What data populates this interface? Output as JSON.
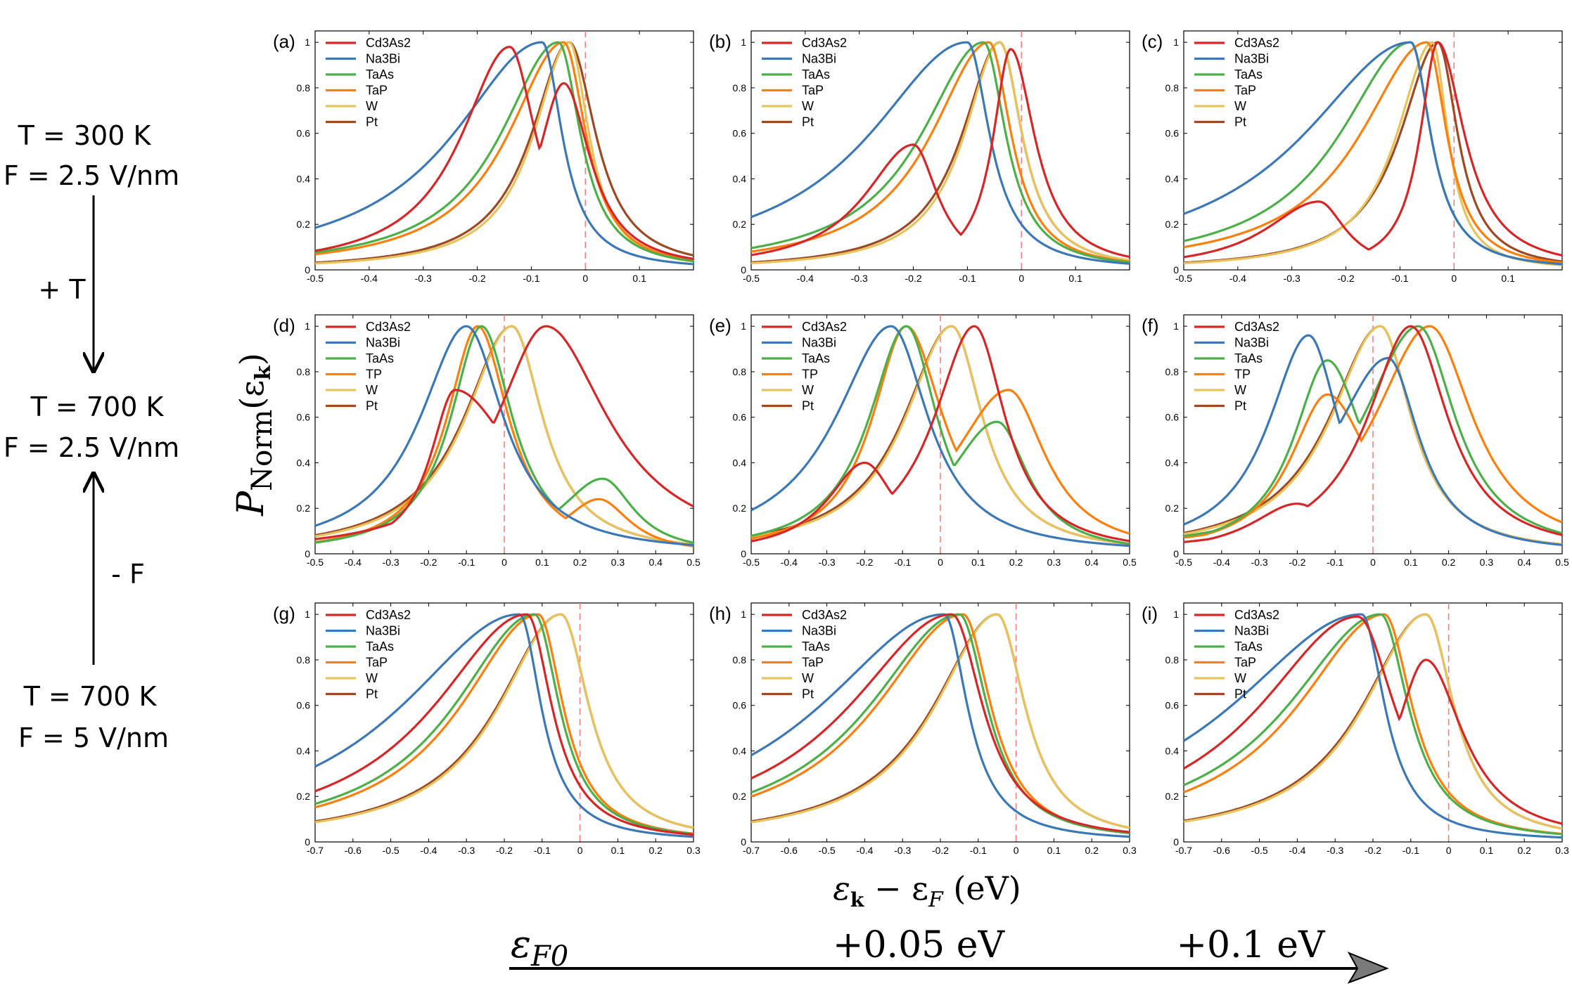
{
  "side": {
    "state1_line1": "T = 300 K",
    "state1_line2": "F = 2.5 V/nm",
    "arrow1_label": "+ T",
    "state2_line1": "T = 700 K",
    "state2_line2": "F = 2.5 V/nm",
    "arrow2_label": "- F",
    "state3_line1": "T = 700 K",
    "state3_line2": "F = 5 V/nm"
  },
  "ylabel": "P",
  "ylabel_sub": "Norm",
  "ylabel_arg": "(ε",
  "ylabel_arg_sub": "k",
  "ylabel_close": ")",
  "xlabel": "ε",
  "xlabel_sub1": "k",
  "xlabel_mid": " − ε",
  "xlabel_sub2": "F",
  "xlabel_unit": " (eV)",
  "bottom": {
    "label1": "ε",
    "label1_sub": "F0",
    "label2": "+0.05 eV",
    "label3": "+0.1 eV"
  },
  "colors": {
    "Cd3As2": "#d62728",
    "Na3Bi": "#3b78b5",
    "TaAs": "#4daf4a",
    "TaP": "#ff7f0e",
    "W": "#e6c35c",
    "Pt": "#9c4a24",
    "fermi_line": "#f08080"
  },
  "chart_data": [
    {
      "panel": "(a)",
      "type": "line",
      "xlim": [
        -0.5,
        0.2
      ],
      "ylim": [
        0,
        1.05
      ],
      "xticks": [
        "-0.5",
        "-0.4",
        "-0.3",
        "-0.2",
        "-0.1",
        "0",
        "0.1"
      ],
      "yticks": [
        "0",
        "0.2",
        "0.4",
        "0.6",
        "0.8",
        "1"
      ],
      "legend": [
        "Cd3As2",
        "Na3Bi",
        "TaAs",
        "TaP",
        "W",
        "Pt"
      ],
      "series": [
        {
          "name": "Cd3As2",
          "peaks": [
            {
              "c": -0.14,
              "w": 0.11,
              "a": 0.98
            },
            {
              "c": -0.04,
              "w": 0.06,
              "a": 0.82
            }
          ],
          "tail": 0.06
        },
        {
          "name": "Na3Bi",
          "peaks": [
            {
              "c": -0.08,
              "w": 0.2,
              "a": 1
            }
          ],
          "tail": 0.045
        },
        {
          "name": "TaAs",
          "peaks": [
            {
              "c": -0.05,
              "w": 0.13,
              "a": 1
            }
          ],
          "tail": 0.05
        },
        {
          "name": "TaP",
          "peaks": [
            {
              "c": -0.04,
              "w": 0.125,
              "a": 1
            }
          ],
          "tail": 0.05
        },
        {
          "name": "W",
          "peaks": [
            {
              "c": -0.03,
              "w": 0.08,
              "a": 1
            }
          ],
          "tail": 0.045
        },
        {
          "name": "Pt",
          "peaks": [
            {
              "c": -0.03,
              "w": 0.085,
              "a": 1
            }
          ],
          "tail": 0.06
        }
      ]
    },
    {
      "panel": "(b)",
      "type": "line",
      "xlim": [
        -0.5,
        0.2
      ],
      "ylim": [
        0,
        1.05
      ],
      "xticks": [
        "-0.5",
        "-0.4",
        "-0.3",
        "-0.2",
        "-0.1",
        "0",
        "0.1"
      ],
      "yticks": [
        "0",
        "0.2",
        "0.4",
        "0.6",
        "0.8",
        "1"
      ],
      "legend": [
        "Cd3As2",
        "Na3Bi",
        "TaAs",
        "TaP",
        "W",
        "Pt"
      ],
      "series": [
        {
          "name": "Cd3As2",
          "peaks": [
            {
              "c": -0.2,
              "w": 0.11,
              "a": 0.55
            },
            {
              "c": -0.02,
              "w": 0.04,
              "a": 0.97
            }
          ],
          "tail": 0.055
        },
        {
          "name": "Na3Bi",
          "peaks": [
            {
              "c": -0.1,
              "w": 0.22,
              "a": 1
            }
          ],
          "tail": 0.05
        },
        {
          "name": "TaAs",
          "peaks": [
            {
              "c": -0.07,
              "w": 0.14,
              "a": 1
            }
          ],
          "tail": 0.05
        },
        {
          "name": "TaP",
          "peaks": [
            {
              "c": -0.06,
              "w": 0.13,
              "a": 1
            }
          ],
          "tail": 0.05
        },
        {
          "name": "W",
          "peaks": [
            {
              "c": -0.04,
              "w": 0.08,
              "a": 1
            }
          ],
          "tail": 0.05
        },
        {
          "name": "Pt",
          "peaks": [
            {
              "c": -0.04,
              "w": 0.085,
              "a": 1
            }
          ],
          "tail": 0.05
        }
      ]
    },
    {
      "panel": "(c)",
      "type": "line",
      "xlim": [
        -0.5,
        0.2
      ],
      "ylim": [
        0,
        1.05
      ],
      "xticks": [
        "-0.5",
        "-0.4",
        "-0.3",
        "-0.2",
        "-0.1",
        "0",
        "0.1"
      ],
      "yticks": [
        "0",
        "0.2",
        "0.4",
        "0.6",
        "0.8",
        "1"
      ],
      "legend": [
        "Cd3As2",
        "Na3Bi",
        "TaAs",
        "TaP",
        "W",
        "Pt"
      ],
      "series": [
        {
          "name": "Cd3As2",
          "peaks": [
            {
              "c": -0.25,
              "w": 0.12,
              "a": 0.3
            },
            {
              "c": -0.03,
              "w": 0.04,
              "a": 1
            }
          ],
          "tail": 0.06
        },
        {
          "name": "Na3Bi",
          "peaks": [
            {
              "c": -0.08,
              "w": 0.24,
              "a": 1
            }
          ],
          "tail": 0.045
        },
        {
          "name": "TaAs",
          "peaks": [
            {
              "c": -0.08,
              "w": 0.16,
              "a": 1
            }
          ],
          "tail": 0.045
        },
        {
          "name": "TaP",
          "peaks": [
            {
              "c": -0.05,
              "w": 0.15,
              "a": 1
            }
          ],
          "tail": 0.045
        },
        {
          "name": "W",
          "peaks": [
            {
              "c": -0.04,
              "w": 0.08,
              "a": 1
            }
          ],
          "tail": 0.035
        },
        {
          "name": "Pt",
          "peaks": [
            {
              "c": -0.03,
              "w": 0.085,
              "a": 1
            }
          ],
          "tail": 0.045
        }
      ]
    },
    {
      "panel": "(d)",
      "type": "line",
      "xlim": [
        -0.5,
        0.5
      ],
      "ylim": [
        0,
        1.05
      ],
      "xticks": [
        "-0.5",
        "-0.4",
        "-0.3",
        "-0.2",
        "-0.1",
        "0",
        "0.1",
        "0.2",
        "0.3",
        "0.4",
        "0.5"
      ],
      "yticks": [
        "0",
        "0.2",
        "0.4",
        "0.6",
        "0.8",
        "1"
      ],
      "legend": [
        "Cd3As2",
        "Na3Bi",
        "TaAs",
        "TP",
        "W",
        "Pt"
      ],
      "series": [
        {
          "name": "Cd3As2",
          "peaks": [
            {
              "c": -0.13,
              "w": 0.08,
              "a": 0.72
            },
            {
              "c": 0.11,
              "w": 0.16,
              "a": 1
            }
          ],
          "tail": 0.2
        },
        {
          "name": "Na3Bi",
          "peaks": [
            {
              "c": -0.1,
              "w": 0.15,
              "a": 1
            }
          ],
          "tail": 0.12
        },
        {
          "name": "TaAs",
          "peaks": [
            {
              "c": -0.06,
              "w": 0.1,
              "a": 1
            },
            {
              "c": 0.26,
              "w": 0.14,
              "a": 0.33
            }
          ],
          "tail": 0.1
        },
        {
          "name": "TP",
          "peaks": [
            {
              "c": -0.07,
              "w": 0.1,
              "a": 1
            },
            {
              "c": 0.25,
              "w": 0.12,
              "a": 0.24
            }
          ],
          "tail": 0.1
        },
        {
          "name": "W",
          "peaks": [
            {
              "c": 0.02,
              "w": 0.15,
              "a": 1
            }
          ],
          "tail": 0.1
        },
        {
          "name": "Pt",
          "peaks": [
            {
              "c": 0.02,
              "w": 0.155,
              "a": 1
            }
          ],
          "tail": 0.1
        }
      ]
    },
    {
      "panel": "(e)",
      "type": "line",
      "xlim": [
        -0.5,
        0.5
      ],
      "ylim": [
        0,
        1.05
      ],
      "xticks": [
        "-0.5",
        "-0.4",
        "-0.3",
        "-0.2",
        "-0.1",
        "0",
        "0.1",
        "0.2",
        "0.3",
        "0.4",
        "0.5"
      ],
      "yticks": [
        "0",
        "0.2",
        "0.4",
        "0.6",
        "0.8",
        "1"
      ],
      "legend": [
        "Cd3As2",
        "Na3Bi",
        "TaAs",
        "TP",
        "W",
        "Pt"
      ],
      "series": [
        {
          "name": "Cd3As2",
          "peaks": [
            {
              "c": -0.2,
              "w": 0.12,
              "a": 0.4
            },
            {
              "c": 0.09,
              "w": 0.13,
              "a": 1
            }
          ],
          "tail": 0.1
        },
        {
          "name": "Na3Bi",
          "peaks": [
            {
              "c": -0.13,
              "w": 0.18,
              "a": 1
            }
          ],
          "tail": 0.12
        },
        {
          "name": "TaAs",
          "peaks": [
            {
              "c": -0.09,
              "w": 0.12,
              "a": 1
            },
            {
              "c": 0.15,
              "w": 0.16,
              "a": 0.58
            }
          ],
          "tail": 0.1
        },
        {
          "name": "TP",
          "peaks": [
            {
              "c": -0.09,
              "w": 0.11,
              "a": 1
            },
            {
              "c": 0.18,
              "w": 0.18,
              "a": 0.72
            }
          ],
          "tail": 0.12
        },
        {
          "name": "W",
          "peaks": [
            {
              "c": 0.03,
              "w": 0.15,
              "a": 1
            }
          ],
          "tail": 0.1
        },
        {
          "name": "Pt",
          "peaks": [
            {
              "c": 0.03,
              "w": 0.155,
              "a": 1
            }
          ],
          "tail": 0.1
        }
      ]
    },
    {
      "panel": "(f)",
      "type": "line",
      "xlim": [
        -0.5,
        0.5
      ],
      "ylim": [
        0,
        1.05
      ],
      "xticks": [
        "-0.5",
        "-0.4",
        "-0.3",
        "-0.2",
        "-0.1",
        "0",
        "0.1",
        "0.2",
        "0.3",
        "0.4",
        "0.5"
      ],
      "yticks": [
        "0",
        "0.2",
        "0.4",
        "0.6",
        "0.8",
        "1"
      ],
      "legend": [
        "Cd3As2",
        "Na3Bi",
        "TaAs",
        "TP",
        "W",
        "Pt"
      ],
      "series": [
        {
          "name": "Cd3As2",
          "peaks": [
            {
              "c": -0.2,
              "w": 0.15,
              "a": 0.22
            },
            {
              "c": 0.1,
              "w": 0.14,
              "a": 1
            }
          ],
          "tail": 0.12
        },
        {
          "name": "Na3Bi",
          "peaks": [
            {
              "c": -0.17,
              "w": 0.13,
              "a": 0.96
            },
            {
              "c": 0.04,
              "w": 0.18,
              "a": 0.86
            }
          ],
          "tail": 0.1
        },
        {
          "name": "TaAs",
          "peaks": [
            {
              "c": -0.12,
              "w": 0.11,
              "a": 0.85
            },
            {
              "c": 0.12,
              "w": 0.18,
              "a": 1
            }
          ],
          "tail": 0.12
        },
        {
          "name": "TP",
          "peaks": [
            {
              "c": -0.12,
              "w": 0.12,
              "a": 0.7
            },
            {
              "c": 0.15,
              "w": 0.18,
              "a": 1
            }
          ],
          "tail": 0.14
        },
        {
          "name": "W",
          "peaks": [
            {
              "c": 0.02,
              "w": 0.16,
              "a": 1
            }
          ],
          "tail": 0.1
        },
        {
          "name": "Pt",
          "peaks": [
            {
              "c": 0.02,
              "w": 0.165,
              "a": 1
            }
          ],
          "tail": 0.1
        }
      ]
    },
    {
      "panel": "(g)",
      "type": "line",
      "xlim": [
        -0.7,
        0.3
      ],
      "ylim": [
        0,
        1.05
      ],
      "xticks": [
        "-0.7",
        "-0.6",
        "-0.5",
        "-0.4",
        "-0.3",
        "-0.2",
        "-0.1",
        "0",
        "0.1",
        "0.2",
        "0.3"
      ],
      "yticks": [
        "0",
        "0.2",
        "0.4",
        "0.6",
        "0.8",
        "1"
      ],
      "legend": [
        "Cd3As2",
        "Na3Bi",
        "TaAs",
        "TaP",
        "W",
        "Pt"
      ],
      "series": [
        {
          "name": "Cd3As2",
          "peaks": [
            {
              "c": -0.14,
              "w": 0.3,
              "a": 1
            }
          ],
          "tail": 0.08
        },
        {
          "name": "Na3Bi",
          "peaks": [
            {
              "c": -0.16,
              "w": 0.38,
              "a": 1
            }
          ],
          "tail": 0.07
        },
        {
          "name": "TaAs",
          "peaks": [
            {
              "c": -0.12,
              "w": 0.26,
              "a": 1
            }
          ],
          "tail": 0.08
        },
        {
          "name": "TaP",
          "peaks": [
            {
              "c": -0.11,
              "w": 0.25,
              "a": 1
            }
          ],
          "tail": 0.08
        },
        {
          "name": "W",
          "peaks": [
            {
              "c": -0.05,
              "w": 0.2,
              "a": 1
            }
          ],
          "tail": 0.09
        },
        {
          "name": "Pt",
          "peaks": [
            {
              "c": -0.05,
              "w": 0.205,
              "a": 1
            }
          ],
          "tail": 0.09
        }
      ]
    },
    {
      "panel": "(h)",
      "type": "line",
      "xlim": [
        -0.7,
        0.3
      ],
      "ylim": [
        0,
        1.05
      ],
      "xticks": [
        "-0.7",
        "-0.6",
        "-0.5",
        "-0.4",
        "-0.3",
        "-0.2",
        "-0.1",
        "0",
        "0.1",
        "0.2",
        "0.3"
      ],
      "yticks": [
        "0",
        "0.2",
        "0.4",
        "0.6",
        "0.8",
        "1"
      ],
      "legend": [
        "Cd3As2",
        "Na3Bi",
        "TaAs",
        "TaP",
        "W",
        "Pt"
      ],
      "series": [
        {
          "name": "Cd3As2",
          "peaks": [
            {
              "c": -0.17,
              "w": 0.33,
              "a": 1
            }
          ],
          "tail": 0.1
        },
        {
          "name": "Na3Bi",
          "peaks": [
            {
              "c": -0.19,
              "w": 0.4,
              "a": 1
            }
          ],
          "tail": 0.075
        },
        {
          "name": "TaAs",
          "peaks": [
            {
              "c": -0.15,
              "w": 0.29,
              "a": 1
            }
          ],
          "tail": 0.09
        },
        {
          "name": "TaP",
          "peaks": [
            {
              "c": -0.14,
              "w": 0.28,
              "a": 1
            }
          ],
          "tail": 0.09
        },
        {
          "name": "W",
          "peaks": [
            {
              "c": -0.05,
              "w": 0.2,
              "a": 1
            }
          ],
          "tail": 0.09
        },
        {
          "name": "Pt",
          "peaks": [
            {
              "c": -0.05,
              "w": 0.205,
              "a": 1
            }
          ],
          "tail": 0.09
        }
      ]
    },
    {
      "panel": "(i)",
      "type": "line",
      "xlim": [
        -0.7,
        0.3
      ],
      "ylim": [
        0,
        1.05
      ],
      "xticks": [
        "-0.7",
        "-0.6",
        "-0.5",
        "-0.4",
        "-0.3",
        "-0.2",
        "-0.1",
        "0",
        "0.1",
        "0.2",
        "0.3"
      ],
      "yticks": [
        "0",
        "0.2",
        "0.4",
        "0.6",
        "0.8",
        "1"
      ],
      "legend": [
        "Cd3As2",
        "Na3Bi",
        "TaAs",
        "TaP",
        "W",
        "Pt"
      ],
      "series": [
        {
          "name": "Cd3As2",
          "peaks": [
            {
              "c": -0.24,
              "w": 0.32,
              "a": 0.99
            },
            {
              "c": -0.06,
              "w": 0.1,
              "a": 0.8
            }
          ],
          "tail": 0.12
        },
        {
          "name": "Na3Bi",
          "peaks": [
            {
              "c": -0.23,
              "w": 0.42,
              "a": 1
            }
          ],
          "tail": 0.075
        },
        {
          "name": "TaAs",
          "peaks": [
            {
              "c": -0.18,
              "w": 0.3,
              "a": 1
            }
          ],
          "tail": 0.09
        },
        {
          "name": "TaP",
          "peaks": [
            {
              "c": -0.17,
              "w": 0.28,
              "a": 1
            }
          ],
          "tail": 0.09
        },
        {
          "name": "W",
          "peaks": [
            {
              "c": -0.06,
              "w": 0.2,
              "a": 1
            }
          ],
          "tail": 0.09
        },
        {
          "name": "Pt",
          "peaks": [
            {
              "c": -0.06,
              "w": 0.205,
              "a": 1
            }
          ],
          "tail": 0.09
        }
      ]
    }
  ]
}
